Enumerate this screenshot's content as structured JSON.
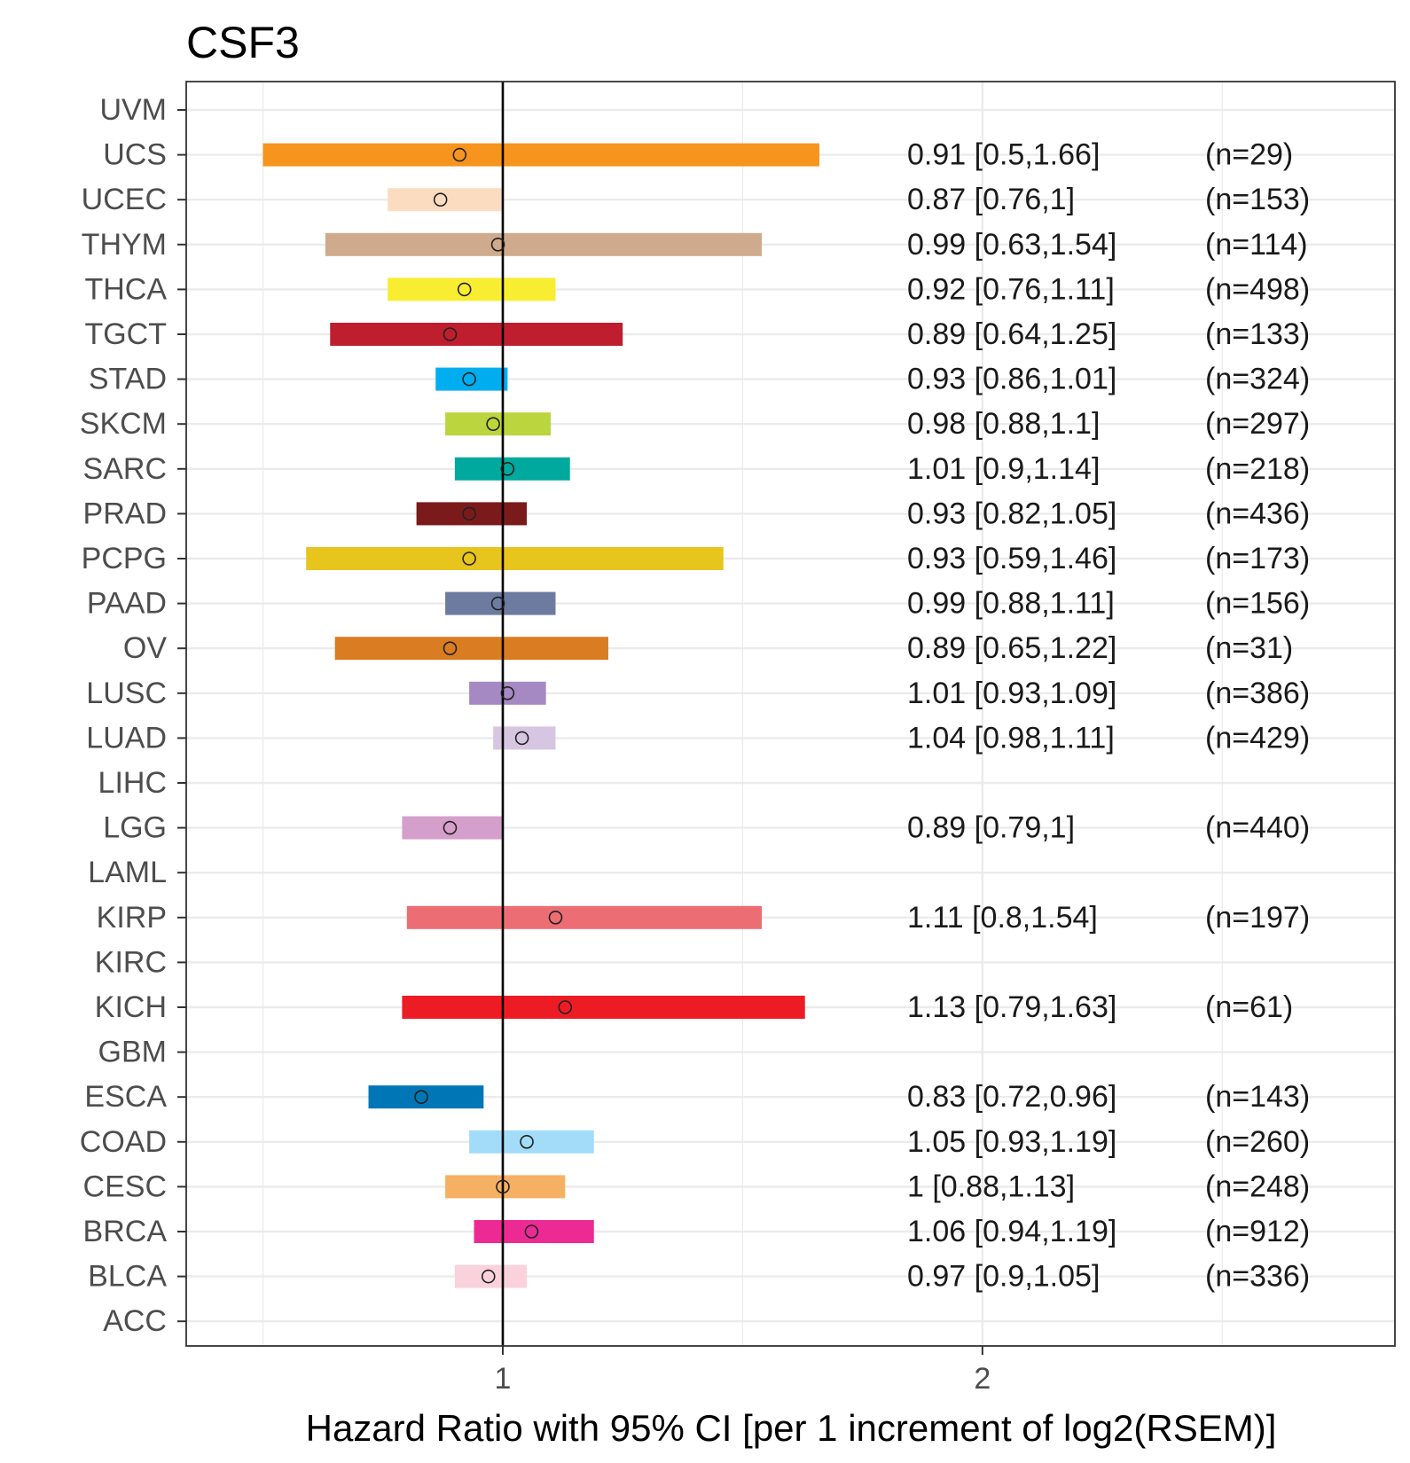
{
  "chart_data": {
    "type": "forest",
    "title": "CSF3",
    "xlabel": "Hazard Ratio with 95% CI [per 1 increment of log2(RSEM)]",
    "ylabel": "",
    "xlim": [
      0.34,
      2.86
    ],
    "x_ticks": [
      1,
      2
    ],
    "x_minor_gridlines": [
      0.5,
      1.5,
      2.5
    ],
    "reference_line": 1,
    "grid": true,
    "colors": {
      "axis": "#333333",
      "grid": "#ebebeb",
      "ref_line": "#000000",
      "point_stroke": "#222222"
    },
    "rows": [
      {
        "label": "UVM"
      },
      {
        "label": "UCS",
        "hr": 0.91,
        "low": 0.5,
        "high": 1.66,
        "hr_text": "0.91 [0.5,1.66]",
        "n_text": "(n=29)",
        "color": "#f7941d"
      },
      {
        "label": "UCEC",
        "hr": 0.87,
        "low": 0.76,
        "high": 1,
        "hr_text": "0.87 [0.76,1]",
        "n_text": "(n=153)",
        "color": "#fbdcc0"
      },
      {
        "label": "THYM",
        "hr": 0.99,
        "low": 0.63,
        "high": 1.54,
        "hr_text": "0.99 [0.63,1.54]",
        "n_text": "(n=114)",
        "color": "#cfaa8c"
      },
      {
        "label": "THCA",
        "hr": 0.92,
        "low": 0.76,
        "high": 1.11,
        "hr_text": "0.92 [0.76,1.11]",
        "n_text": "(n=498)",
        "color": "#f9ed32"
      },
      {
        "label": "TGCT",
        "hr": 0.89,
        "low": 0.64,
        "high": 1.25,
        "hr_text": "0.89 [0.64,1.25]",
        "n_text": "(n=133)",
        "color": "#be1e2d"
      },
      {
        "label": "STAD",
        "hr": 0.93,
        "low": 0.86,
        "high": 1.01,
        "hr_text": "0.93 [0.86,1.01]",
        "n_text": "(n=324)",
        "color": "#00aeef"
      },
      {
        "label": "SKCM",
        "hr": 0.98,
        "low": 0.88,
        "high": 1.1,
        "hr_text": "0.98 [0.88,1.1]",
        "n_text": "(n=297)",
        "color": "#bbd53f"
      },
      {
        "label": "SARC",
        "hr": 1.01,
        "low": 0.9,
        "high": 1.14,
        "hr_text": "1.01 [0.9,1.14]",
        "n_text": "(n=218)",
        "color": "#00a99d"
      },
      {
        "label": "PRAD",
        "hr": 0.93,
        "low": 0.82,
        "high": 1.05,
        "hr_text": "0.93 [0.82,1.05]",
        "n_text": "(n=436)",
        "color": "#7b1a1a"
      },
      {
        "label": "PCPG",
        "hr": 0.93,
        "low": 0.59,
        "high": 1.46,
        "hr_text": "0.93 [0.59,1.46]",
        "n_text": "(n=173)",
        "color": "#e8c51c"
      },
      {
        "label": "PAAD",
        "hr": 0.99,
        "low": 0.88,
        "high": 1.11,
        "hr_text": "0.99 [0.88,1.11]",
        "n_text": "(n=156)",
        "color": "#6e7ba0"
      },
      {
        "label": "OV",
        "hr": 0.89,
        "low": 0.65,
        "high": 1.22,
        "hr_text": "0.89 [0.65,1.22]",
        "n_text": "(n=31)",
        "color": "#d97c22"
      },
      {
        "label": "LUSC",
        "hr": 1.01,
        "low": 0.93,
        "high": 1.09,
        "hr_text": "1.01 [0.93,1.09]",
        "n_text": "(n=386)",
        "color": "#a489c2"
      },
      {
        "label": "LUAD",
        "hr": 1.04,
        "low": 0.98,
        "high": 1.11,
        "hr_text": "1.04 [0.98,1.11]",
        "n_text": "(n=429)",
        "color": "#d6c6e2"
      },
      {
        "label": "LIHC"
      },
      {
        "label": "LGG",
        "hr": 0.89,
        "low": 0.79,
        "high": 1,
        "hr_text": "0.89 [0.79,1]",
        "n_text": "(n=440)",
        "color": "#d49fca"
      },
      {
        "label": "LAML"
      },
      {
        "label": "KIRP",
        "hr": 1.11,
        "low": 0.8,
        "high": 1.54,
        "hr_text": "1.11 [0.8,1.54]",
        "n_text": "(n=197)",
        "color": "#ec6e74"
      },
      {
        "label": "KIRC"
      },
      {
        "label": "KICH",
        "hr": 1.13,
        "low": 0.79,
        "high": 1.63,
        "hr_text": "1.13 [0.79,1.63]",
        "n_text": "(n=61)",
        "color": "#ed1c24"
      },
      {
        "label": "GBM"
      },
      {
        "label": "ESCA",
        "hr": 0.83,
        "low": 0.72,
        "high": 0.96,
        "hr_text": "0.83 [0.72,0.96]",
        "n_text": "(n=143)",
        "color": "#0076b6"
      },
      {
        "label": "COAD",
        "hr": 1.05,
        "low": 0.93,
        "high": 1.19,
        "hr_text": "1.05 [0.93,1.19]",
        "n_text": "(n=260)",
        "color": "#a3dcf8"
      },
      {
        "label": "CESC",
        "hr": 1,
        "low": 0.88,
        "high": 1.13,
        "hr_text": "1 [0.88,1.13]",
        "n_text": "(n=248)",
        "color": "#f5b064"
      },
      {
        "label": "BRCA",
        "hr": 1.06,
        "low": 0.94,
        "high": 1.19,
        "hr_text": "1.06 [0.94,1.19]",
        "n_text": "(n=912)",
        "color": "#ec2a93"
      },
      {
        "label": "BLCA",
        "hr": 0.97,
        "low": 0.9,
        "high": 1.05,
        "hr_text": "0.97 [0.9,1.05]",
        "n_text": "(n=336)",
        "color": "#f9d2dc"
      },
      {
        "label": "ACC"
      }
    ]
  }
}
